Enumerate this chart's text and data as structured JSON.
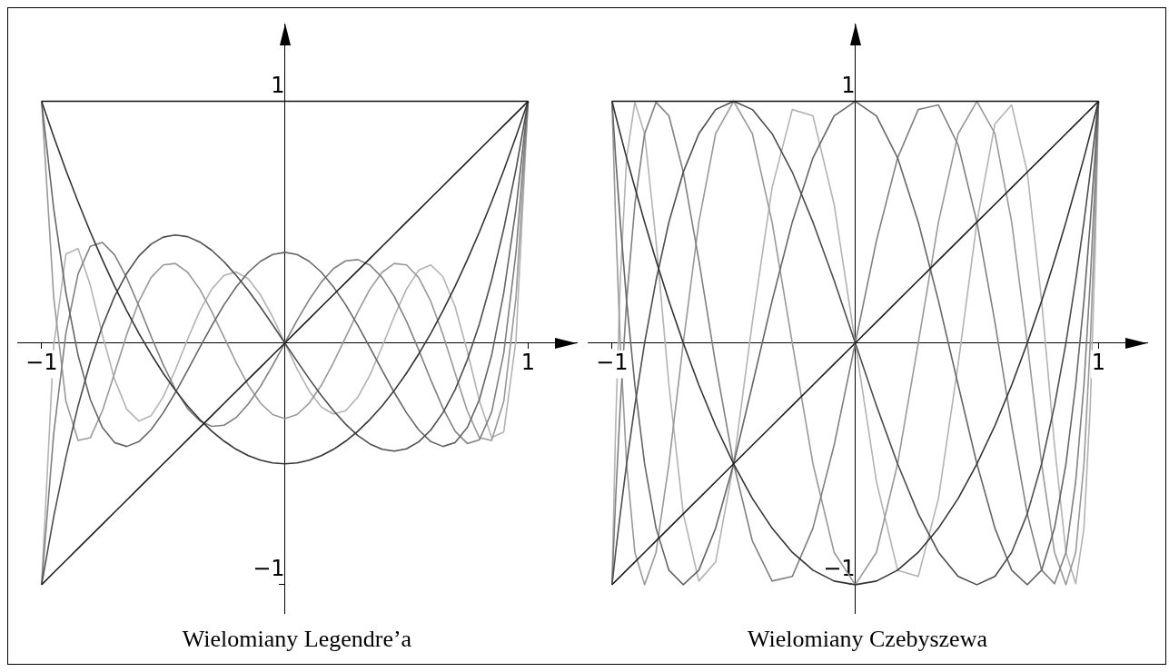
{
  "chart_data": [
    {
      "type": "line",
      "title": "Wielomiany Legendre’a",
      "xlim": [
        -1.1,
        1.2
      ],
      "ylim": [
        -1.12,
        1.32
      ],
      "xticks": [
        {
          "value": -1,
          "label": "−1"
        },
        1
      ],
      "yticks": [
        {
          "value": -1,
          "label": "−1"
        },
        1
      ],
      "x": [
        -1,
        -0.95,
        -0.9,
        -0.85,
        -0.8,
        -0.75,
        -0.7,
        -0.65,
        -0.6,
        -0.55,
        -0.5,
        -0.45,
        -0.4,
        -0.35,
        -0.3,
        -0.25,
        -0.2,
        -0.15,
        -0.1,
        -0.05,
        0,
        0.05,
        0.1,
        0.15,
        0.2,
        0.25,
        0.3,
        0.35,
        0.4,
        0.45,
        0.5,
        0.55,
        0.6,
        0.65,
        0.7,
        0.75,
        0.8,
        0.85,
        0.9,
        0.95,
        1
      ],
      "series": [
        {
          "color": "#111111",
          "values": [
            1,
            1,
            1,
            1,
            1,
            1,
            1,
            1,
            1,
            1,
            1,
            1,
            1,
            1,
            1,
            1,
            1,
            1,
            1,
            1,
            1,
            1,
            1,
            1,
            1,
            1,
            1,
            1,
            1,
            1,
            1,
            1,
            1,
            1,
            1,
            1,
            1,
            1,
            1,
            1,
            1
          ]
        },
        {
          "color": "#1e1e1e",
          "values": [
            -1,
            -0.95,
            -0.9,
            -0.85,
            -0.8,
            -0.75,
            -0.7,
            -0.65,
            -0.6,
            -0.55,
            -0.5,
            -0.45,
            -0.4,
            -0.35,
            -0.3,
            -0.25,
            -0.2,
            -0.15,
            -0.1,
            -0.05,
            0,
            0.05,
            0.1,
            0.15,
            0.2,
            0.25,
            0.3,
            0.35,
            0.4,
            0.45,
            0.5,
            0.55,
            0.6,
            0.65,
            0.7,
            0.75,
            0.8,
            0.85,
            0.9,
            0.95,
            1
          ]
        },
        {
          "color": "#333333",
          "values": [
            1,
            0.854,
            0.715,
            0.584,
            0.46,
            0.344,
            0.235,
            0.134,
            0.04,
            -0.046,
            -0.125,
            -0.196,
            -0.26,
            -0.316,
            -0.365,
            -0.406,
            -0.44,
            -0.466,
            -0.485,
            -0.496,
            -0.5,
            -0.496,
            -0.485,
            -0.466,
            -0.44,
            -0.406,
            -0.365,
            -0.316,
            -0.26,
            -0.196,
            -0.125,
            -0.046,
            0.04,
            0.134,
            0.235,
            0.344,
            0.46,
            0.584,
            0.715,
            0.854,
            1
          ]
        },
        {
          "color": "#4d4d4d",
          "values": [
            -1,
            -0.718,
            -0.473,
            -0.26,
            -0.08,
            0.07,
            0.193,
            0.288,
            0.36,
            0.409,
            0.438,
            0.447,
            0.44,
            0.418,
            0.383,
            0.336,
            0.28,
            0.217,
            0.148,
            0.075,
            0,
            -0.075,
            -0.148,
            -0.217,
            -0.28,
            -0.336,
            -0.383,
            -0.418,
            -0.44,
            -0.447,
            -0.438,
            -0.409,
            -0.36,
            -0.288,
            -0.193,
            -0.07,
            0.08,
            0.26,
            0.473,
            0.718,
            1
          ]
        },
        {
          "color": "#666666",
          "values": [
            1,
            0.554,
            0.208,
            -0.051,
            -0.233,
            -0.35,
            -0.412,
            -0.428,
            -0.408,
            -0.359,
            -0.289,
            -0.205,
            -0.113,
            -0.019,
            0.073,
            0.158,
            0.232,
            0.293,
            0.338,
            0.366,
            0.375,
            0.366,
            0.338,
            0.293,
            0.232,
            0.158,
            0.073,
            -0.019,
            -0.113,
            -0.205,
            -0.289,
            -0.359,
            -0.408,
            -0.428,
            -0.412,
            -0.35,
            -0.233,
            -0.051,
            0.208,
            0.554,
            1
          ]
        },
        {
          "color": "#808080",
          "values": [
            -1,
            -0.373,
            0.041,
            0.286,
            0.4,
            0.416,
            0.365,
            0.27,
            0.153,
            0.028,
            -0.09,
            -0.192,
            -0.271,
            -0.322,
            -0.345,
            -0.34,
            -0.308,
            -0.252,
            -0.179,
            -0.093,
            0,
            0.093,
            0.179,
            0.252,
            0.308,
            0.34,
            0.345,
            0.322,
            0.271,
            0.192,
            0.09,
            -0.028,
            -0.153,
            -0.27,
            -0.365,
            -0.416,
            -0.4,
            -0.286,
            -0.041,
            0.373,
            1
          ]
        },
        {
          "color": "#999999",
          "values": [
            1,
            0.187,
            -0.241,
            -0.403,
            -0.392,
            -0.281,
            -0.125,
            0.035,
            0.172,
            0.271,
            0.323,
            0.329,
            0.293,
            0.223,
            0.129,
            0.024,
            -0.081,
            -0.175,
            -0.249,
            -0.296,
            -0.313,
            -0.296,
            -0.249,
            -0.175,
            -0.081,
            0.024,
            0.129,
            0.223,
            0.293,
            0.329,
            0.323,
            0.271,
            0.172,
            0.035,
            -0.125,
            -0.281,
            -0.392,
            -0.403,
            -0.241,
            0.187,
            1
          ]
        },
        {
          "color": "#b3b3b3",
          "values": [
            -1,
            -0.011,
            0.368,
            0.391,
            0.24,
            0.034,
            -0.15,
            -0.274,
            -0.323,
            -0.301,
            -0.223,
            -0.111,
            0.015,
            0.132,
            0.224,
            0.28,
            0.294,
            0.265,
            0.199,
            0.107,
            0,
            -0.107,
            -0.199,
            -0.265,
            -0.294,
            -0.28,
            -0.224,
            -0.132,
            -0.015,
            0.111,
            0.223,
            0.301,
            0.323,
            0.274,
            0.15,
            -0.034,
            -0.24,
            -0.391,
            -0.368,
            0.011,
            1
          ]
        }
      ]
    },
    {
      "type": "line",
      "title": "Wielomiany Czebyszewa",
      "xlim": [
        -1.1,
        1.2
      ],
      "ylim": [
        -1.12,
        1.32
      ],
      "xticks": [
        {
          "value": -1,
          "label": "−1"
        },
        1
      ],
      "yticks": [
        {
          "value": -1,
          "label": "−1"
        },
        1
      ],
      "x": [
        -1,
        -0.996,
        -0.985,
        -0.966,
        -0.94,
        -0.906,
        -0.866,
        -0.819,
        -0.766,
        -0.707,
        -0.643,
        -0.574,
        -0.5,
        -0.423,
        -0.342,
        -0.259,
        -0.174,
        -0.087,
        0,
        0.087,
        0.174,
        0.259,
        0.342,
        0.423,
        0.5,
        0.574,
        0.643,
        0.707,
        0.766,
        0.819,
        0.866,
        0.906,
        0.94,
        0.966,
        0.985,
        0.996,
        1
      ],
      "series": [
        {
          "color": "#111111",
          "values": [
            1,
            1,
            1,
            1,
            1,
            1,
            1,
            1,
            1,
            1,
            1,
            1,
            1,
            1,
            1,
            1,
            1,
            1,
            1,
            1,
            1,
            1,
            1,
            1,
            1,
            1,
            1,
            1,
            1,
            1,
            1,
            1,
            1,
            1,
            1,
            1,
            1
          ]
        },
        {
          "color": "#1e1e1e",
          "values": [
            -1,
            -0.996,
            -0.985,
            -0.966,
            -0.94,
            -0.906,
            -0.866,
            -0.819,
            -0.766,
            -0.707,
            -0.643,
            -0.574,
            -0.5,
            -0.423,
            -0.342,
            -0.259,
            -0.174,
            -0.087,
            0,
            0.087,
            0.174,
            0.259,
            0.342,
            0.423,
            0.5,
            0.574,
            0.643,
            0.707,
            0.766,
            0.819,
            0.866,
            0.906,
            0.94,
            0.966,
            0.985,
            0.996,
            1
          ]
        },
        {
          "color": "#333333",
          "values": [
            1,
            0.985,
            0.94,
            0.866,
            0.766,
            0.643,
            0.5,
            0.342,
            0.174,
            0,
            -0.174,
            -0.342,
            -0.5,
            -0.643,
            -0.766,
            -0.866,
            -0.94,
            -0.985,
            -1,
            -0.985,
            -0.94,
            -0.866,
            -0.766,
            -0.643,
            -0.5,
            -0.342,
            -0.174,
            0,
            0.174,
            0.342,
            0.5,
            0.643,
            0.766,
            0.866,
            0.94,
            0.985,
            1
          ]
        },
        {
          "color": "#4d4d4d",
          "values": [
            -1,
            -0.966,
            -0.866,
            -0.707,
            -0.5,
            -0.259,
            0,
            0.259,
            0.5,
            0.707,
            0.866,
            0.966,
            1,
            0.966,
            0.866,
            0.707,
            0.5,
            0.259,
            0,
            -0.259,
            -0.5,
            -0.707,
            -0.866,
            -0.966,
            -1,
            -0.966,
            -0.866,
            -0.707,
            -0.5,
            -0.259,
            0,
            0.259,
            0.5,
            0.707,
            0.866,
            0.966,
            1
          ]
        },
        {
          "color": "#666666",
          "values": [
            1,
            0.94,
            0.766,
            0.5,
            0.174,
            -0.174,
            -0.5,
            -0.766,
            -0.94,
            -1,
            -0.94,
            -0.766,
            -0.5,
            -0.174,
            0.174,
            0.5,
            0.766,
            0.94,
            1,
            0.94,
            0.766,
            0.5,
            0.174,
            -0.174,
            -0.5,
            -0.766,
            -0.94,
            -1,
            -0.94,
            -0.766,
            -0.5,
            -0.174,
            0.174,
            0.5,
            0.766,
            0.94,
            1
          ]
        },
        {
          "color": "#808080",
          "values": [
            -1,
            -0.906,
            -0.643,
            -0.259,
            0.174,
            0.574,
            0.866,
            0.996,
            0.94,
            0.707,
            0.342,
            -0.087,
            -0.5,
            -0.819,
            -0.985,
            -0.966,
            -0.766,
            -0.423,
            0,
            0.423,
            0.766,
            0.966,
            0.985,
            0.819,
            0.5,
            0.087,
            -0.342,
            -0.707,
            -0.94,
            -0.996,
            -0.866,
            -0.574,
            -0.174,
            0.259,
            0.643,
            0.906,
            1
          ]
        },
        {
          "color": "#999999",
          "values": [
            1,
            0.866,
            0.5,
            0,
            -0.5,
            -0.866,
            -1,
            -0.866,
            -0.5,
            0,
            0.5,
            0.866,
            1,
            0.866,
            0.5,
            0,
            -0.5,
            -0.866,
            -1,
            -0.866,
            -0.5,
            0,
            0.5,
            0.866,
            1,
            0.866,
            0.5,
            0,
            -0.5,
            -0.866,
            -1,
            -0.866,
            -0.5,
            0,
            0.5,
            0.866,
            1
          ]
        },
        {
          "color": "#b3b3b3",
          "values": [
            -1,
            -0.819,
            -0.342,
            0.259,
            0.766,
            0.996,
            0.866,
            0.423,
            -0.174,
            -0.707,
            -0.985,
            -0.906,
            -0.5,
            0.087,
            0.643,
            0.966,
            0.94,
            0.574,
            0,
            -0.574,
            -0.94,
            -0.966,
            -0.643,
            -0.087,
            0.5,
            0.906,
            0.985,
            0.707,
            0.174,
            -0.423,
            -0.866,
            -0.996,
            -0.766,
            -0.259,
            0.342,
            0.819,
            1
          ]
        }
      ]
    }
  ]
}
